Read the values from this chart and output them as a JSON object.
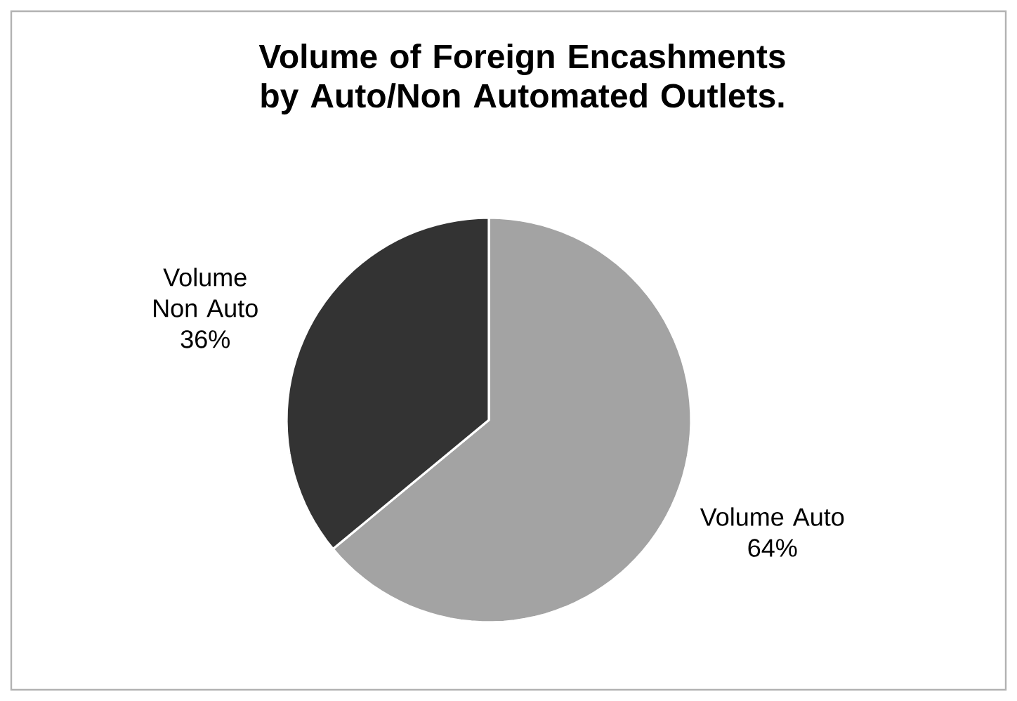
{
  "chart_data": {
    "type": "pie",
    "title": "Volume of Foreign Encashments by Auto/Non Automated Outlets.",
    "categories": [
      "Volume Auto",
      "Volume Non Auto"
    ],
    "values": [
      64,
      36
    ],
    "value_labels": [
      "64%",
      "36%"
    ],
    "colors": [
      "#a3a3a3",
      "#333333"
    ]
  }
}
